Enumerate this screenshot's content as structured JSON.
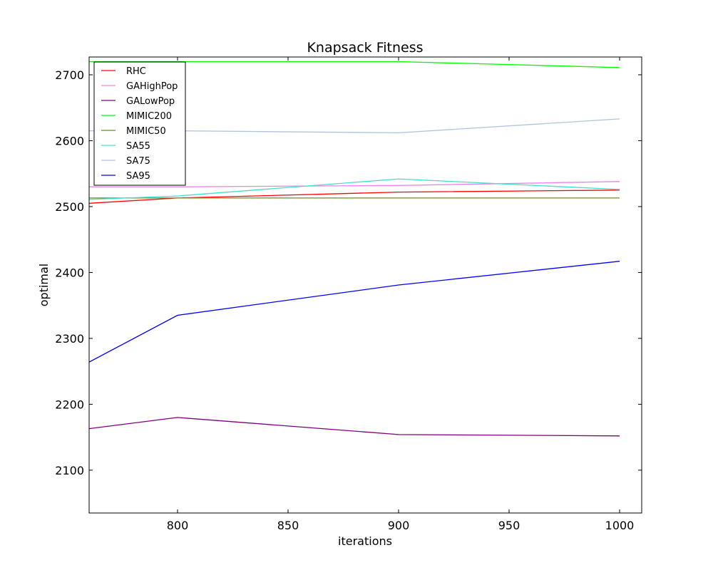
{
  "chart_data": {
    "type": "line",
    "title": "Knapsack Fitness",
    "xlabel": "iterations",
    "ylabel": "optimal",
    "xlim": [
      760,
      1010
    ],
    "ylim": [
      2035,
      2727
    ],
    "xticks": [
      800,
      850,
      900,
      950,
      1000
    ],
    "yticks": [
      2100,
      2200,
      2300,
      2400,
      2500,
      2600,
      2700
    ],
    "grid": false,
    "legend_position": "top-left",
    "x": [
      760,
      800,
      900,
      1000
    ],
    "series": [
      {
        "name": "RHC",
        "color": "#ff0000",
        "values": [
          2505,
          2513,
          2522,
          2525
        ]
      },
      {
        "name": "GAHighPop",
        "color": "#ee82ee",
        "values": [
          2530,
          2530,
          2532,
          2538
        ]
      },
      {
        "name": "GALowPop",
        "color": "#800080",
        "values": [
          2163,
          2180,
          2154,
          2152
        ]
      },
      {
        "name": "MIMIC200",
        "color": "#00ff00",
        "values": [
          2720,
          2720,
          2720,
          2711
        ]
      },
      {
        "name": "MIMIC50",
        "color": "#6b8e23",
        "values": [
          2513,
          2513,
          2513,
          2513
        ]
      },
      {
        "name": "SA55",
        "color": "#40e0d0",
        "values": [
          2511,
          2516,
          2542,
          2526
        ]
      },
      {
        "name": "SA75",
        "color": "#b0c4de",
        "values": [
          2615,
          2615,
          2612,
          2633
        ]
      },
      {
        "name": "SA95",
        "color": "#0000ff",
        "values": [
          2264,
          2335,
          2381,
          2417
        ]
      }
    ]
  }
}
